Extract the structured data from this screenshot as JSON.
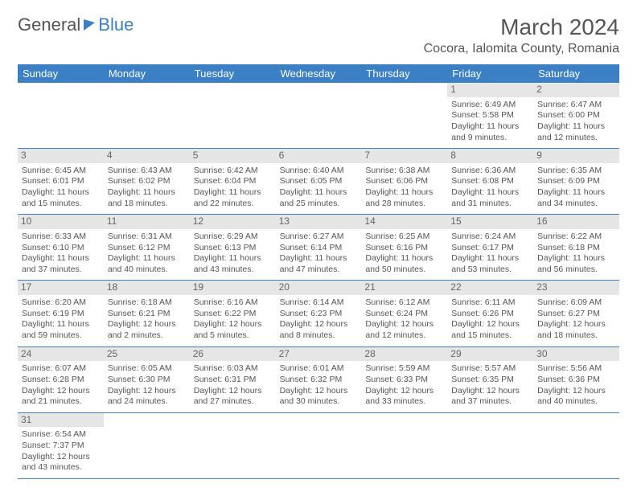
{
  "logo": {
    "part1": "General",
    "part2": "Blue"
  },
  "title": "March 2024",
  "location": "Cocora, Ialomita County, Romania",
  "colors": {
    "header_bg": "#3b7fc4",
    "daynum_bg": "#e6e6e6",
    "text": "#555555"
  },
  "daynames": [
    "Sunday",
    "Monday",
    "Tuesday",
    "Wednesday",
    "Thursday",
    "Friday",
    "Saturday"
  ],
  "weeks": [
    [
      null,
      null,
      null,
      null,
      null,
      {
        "n": "1",
        "sr": "Sunrise: 6:49 AM",
        "ss": "Sunset: 5:58 PM",
        "d1": "Daylight: 11 hours",
        "d2": "and 9 minutes."
      },
      {
        "n": "2",
        "sr": "Sunrise: 6:47 AM",
        "ss": "Sunset: 6:00 PM",
        "d1": "Daylight: 11 hours",
        "d2": "and 12 minutes."
      }
    ],
    [
      {
        "n": "3",
        "sr": "Sunrise: 6:45 AM",
        "ss": "Sunset: 6:01 PM",
        "d1": "Daylight: 11 hours",
        "d2": "and 15 minutes."
      },
      {
        "n": "4",
        "sr": "Sunrise: 6:43 AM",
        "ss": "Sunset: 6:02 PM",
        "d1": "Daylight: 11 hours",
        "d2": "and 18 minutes."
      },
      {
        "n": "5",
        "sr": "Sunrise: 6:42 AM",
        "ss": "Sunset: 6:04 PM",
        "d1": "Daylight: 11 hours",
        "d2": "and 22 minutes."
      },
      {
        "n": "6",
        "sr": "Sunrise: 6:40 AM",
        "ss": "Sunset: 6:05 PM",
        "d1": "Daylight: 11 hours",
        "d2": "and 25 minutes."
      },
      {
        "n": "7",
        "sr": "Sunrise: 6:38 AM",
        "ss": "Sunset: 6:06 PM",
        "d1": "Daylight: 11 hours",
        "d2": "and 28 minutes."
      },
      {
        "n": "8",
        "sr": "Sunrise: 6:36 AM",
        "ss": "Sunset: 6:08 PM",
        "d1": "Daylight: 11 hours",
        "d2": "and 31 minutes."
      },
      {
        "n": "9",
        "sr": "Sunrise: 6:35 AM",
        "ss": "Sunset: 6:09 PM",
        "d1": "Daylight: 11 hours",
        "d2": "and 34 minutes."
      }
    ],
    [
      {
        "n": "10",
        "sr": "Sunrise: 6:33 AM",
        "ss": "Sunset: 6:10 PM",
        "d1": "Daylight: 11 hours",
        "d2": "and 37 minutes."
      },
      {
        "n": "11",
        "sr": "Sunrise: 6:31 AM",
        "ss": "Sunset: 6:12 PM",
        "d1": "Daylight: 11 hours",
        "d2": "and 40 minutes."
      },
      {
        "n": "12",
        "sr": "Sunrise: 6:29 AM",
        "ss": "Sunset: 6:13 PM",
        "d1": "Daylight: 11 hours",
        "d2": "and 43 minutes."
      },
      {
        "n": "13",
        "sr": "Sunrise: 6:27 AM",
        "ss": "Sunset: 6:14 PM",
        "d1": "Daylight: 11 hours",
        "d2": "and 47 minutes."
      },
      {
        "n": "14",
        "sr": "Sunrise: 6:25 AM",
        "ss": "Sunset: 6:16 PM",
        "d1": "Daylight: 11 hours",
        "d2": "and 50 minutes."
      },
      {
        "n": "15",
        "sr": "Sunrise: 6:24 AM",
        "ss": "Sunset: 6:17 PM",
        "d1": "Daylight: 11 hours",
        "d2": "and 53 minutes."
      },
      {
        "n": "16",
        "sr": "Sunrise: 6:22 AM",
        "ss": "Sunset: 6:18 PM",
        "d1": "Daylight: 11 hours",
        "d2": "and 56 minutes."
      }
    ],
    [
      {
        "n": "17",
        "sr": "Sunrise: 6:20 AM",
        "ss": "Sunset: 6:19 PM",
        "d1": "Daylight: 11 hours",
        "d2": "and 59 minutes."
      },
      {
        "n": "18",
        "sr": "Sunrise: 6:18 AM",
        "ss": "Sunset: 6:21 PM",
        "d1": "Daylight: 12 hours",
        "d2": "and 2 minutes."
      },
      {
        "n": "19",
        "sr": "Sunrise: 6:16 AM",
        "ss": "Sunset: 6:22 PM",
        "d1": "Daylight: 12 hours",
        "d2": "and 5 minutes."
      },
      {
        "n": "20",
        "sr": "Sunrise: 6:14 AM",
        "ss": "Sunset: 6:23 PM",
        "d1": "Daylight: 12 hours",
        "d2": "and 8 minutes."
      },
      {
        "n": "21",
        "sr": "Sunrise: 6:12 AM",
        "ss": "Sunset: 6:24 PM",
        "d1": "Daylight: 12 hours",
        "d2": "and 12 minutes."
      },
      {
        "n": "22",
        "sr": "Sunrise: 6:11 AM",
        "ss": "Sunset: 6:26 PM",
        "d1": "Daylight: 12 hours",
        "d2": "and 15 minutes."
      },
      {
        "n": "23",
        "sr": "Sunrise: 6:09 AM",
        "ss": "Sunset: 6:27 PM",
        "d1": "Daylight: 12 hours",
        "d2": "and 18 minutes."
      }
    ],
    [
      {
        "n": "24",
        "sr": "Sunrise: 6:07 AM",
        "ss": "Sunset: 6:28 PM",
        "d1": "Daylight: 12 hours",
        "d2": "and 21 minutes."
      },
      {
        "n": "25",
        "sr": "Sunrise: 6:05 AM",
        "ss": "Sunset: 6:30 PM",
        "d1": "Daylight: 12 hours",
        "d2": "and 24 minutes."
      },
      {
        "n": "26",
        "sr": "Sunrise: 6:03 AM",
        "ss": "Sunset: 6:31 PM",
        "d1": "Daylight: 12 hours",
        "d2": "and 27 minutes."
      },
      {
        "n": "27",
        "sr": "Sunrise: 6:01 AM",
        "ss": "Sunset: 6:32 PM",
        "d1": "Daylight: 12 hours",
        "d2": "and 30 minutes."
      },
      {
        "n": "28",
        "sr": "Sunrise: 5:59 AM",
        "ss": "Sunset: 6:33 PM",
        "d1": "Daylight: 12 hours",
        "d2": "and 33 minutes."
      },
      {
        "n": "29",
        "sr": "Sunrise: 5:57 AM",
        "ss": "Sunset: 6:35 PM",
        "d1": "Daylight: 12 hours",
        "d2": "and 37 minutes."
      },
      {
        "n": "30",
        "sr": "Sunrise: 5:56 AM",
        "ss": "Sunset: 6:36 PM",
        "d1": "Daylight: 12 hours",
        "d2": "and 40 minutes."
      }
    ],
    [
      {
        "n": "31",
        "sr": "Sunrise: 6:54 AM",
        "ss": "Sunset: 7:37 PM",
        "d1": "Daylight: 12 hours",
        "d2": "and 43 minutes."
      },
      null,
      null,
      null,
      null,
      null,
      null
    ]
  ]
}
